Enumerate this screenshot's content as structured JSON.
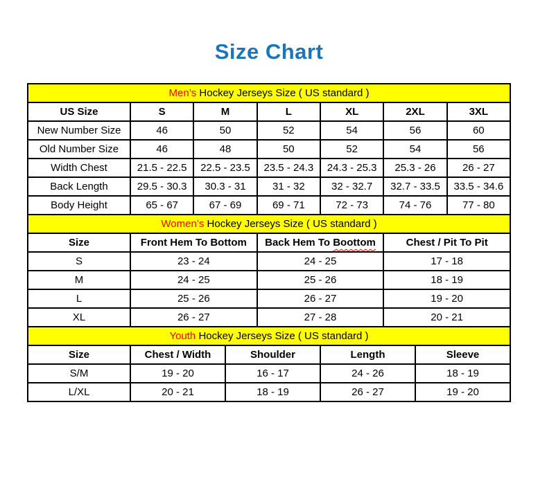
{
  "page": {
    "title": "Size Chart"
  },
  "colors": {
    "title_blue": "#1B75BC",
    "band_yellow": "#FFFF00",
    "accent_red": "#FF0000",
    "border_black": "#000000"
  },
  "sections": {
    "men": {
      "band_highlight": "Men’s",
      "band_rest": " Hockey Jerseys Size ( US standard )",
      "columns": [
        "US Size",
        "S",
        "M",
        "L",
        "XL",
        "2XL",
        "3XL"
      ],
      "rows": [
        {
          "label": "New Number Size",
          "values": [
            "46",
            "50",
            "52",
            "54",
            "56",
            "60"
          ]
        },
        {
          "label": "Old Number Size",
          "values": [
            "46",
            "48",
            "50",
            "52",
            "54",
            "56"
          ]
        },
        {
          "label": "Width Chest",
          "values": [
            "21.5 - 22.5",
            "22.5 - 23.5",
            "23.5 - 24.3",
            "24.3 - 25.3",
            "25.3 - 26",
            "26 - 27"
          ]
        },
        {
          "label": "Back Length",
          "values": [
            "29.5 - 30.3",
            "30.3 - 31",
            "31 - 32",
            "32 - 32.7",
            "32.7 - 33.5",
            "33.5 - 34.6"
          ]
        },
        {
          "label": "Body Height",
          "values": [
            "65 - 67",
            "67 - 69",
            "69 - 71",
            "72 - 73",
            "74 - 76",
            "77 - 80"
          ]
        }
      ]
    },
    "women": {
      "band_highlight": "Women’s",
      "band_rest": " Hockey Jerseys Size ( US standard )",
      "columns": [
        "Size",
        "Front Hem To Bottom",
        "Back Hem To Boottom",
        "Chest / Pit To Pit"
      ],
      "column_2_parts": {
        "before": "Back Hem To ",
        "misspelled_word": "Boottom"
      },
      "rows": [
        {
          "label": "S",
          "values": [
            "23 - 24",
            "24 - 25",
            "17 - 18"
          ]
        },
        {
          "label": "M",
          "values": [
            "24 - 25",
            "25 - 26",
            "18 - 19"
          ]
        },
        {
          "label": "L",
          "values": [
            "25 - 26",
            "26 - 27",
            "19 - 20"
          ]
        },
        {
          "label": "XL",
          "values": [
            "26 - 27",
            "27 - 28",
            "20 - 21"
          ]
        }
      ]
    },
    "youth": {
      "band_highlight": "Youth",
      "band_rest": " Hockey Jerseys Size ( US standard )",
      "columns": [
        "Size",
        "Chest / Width",
        "Shoulder",
        "Length",
        "Sleeve"
      ],
      "rows": [
        {
          "label": "S/M",
          "values": [
            "19 - 20",
            "16 - 17",
            "24 - 26",
            "18 - 19"
          ]
        },
        {
          "label": "L/XL",
          "values": [
            "20 - 21",
            "18 - 19",
            "26 - 27",
            "19 - 20"
          ]
        }
      ]
    }
  }
}
